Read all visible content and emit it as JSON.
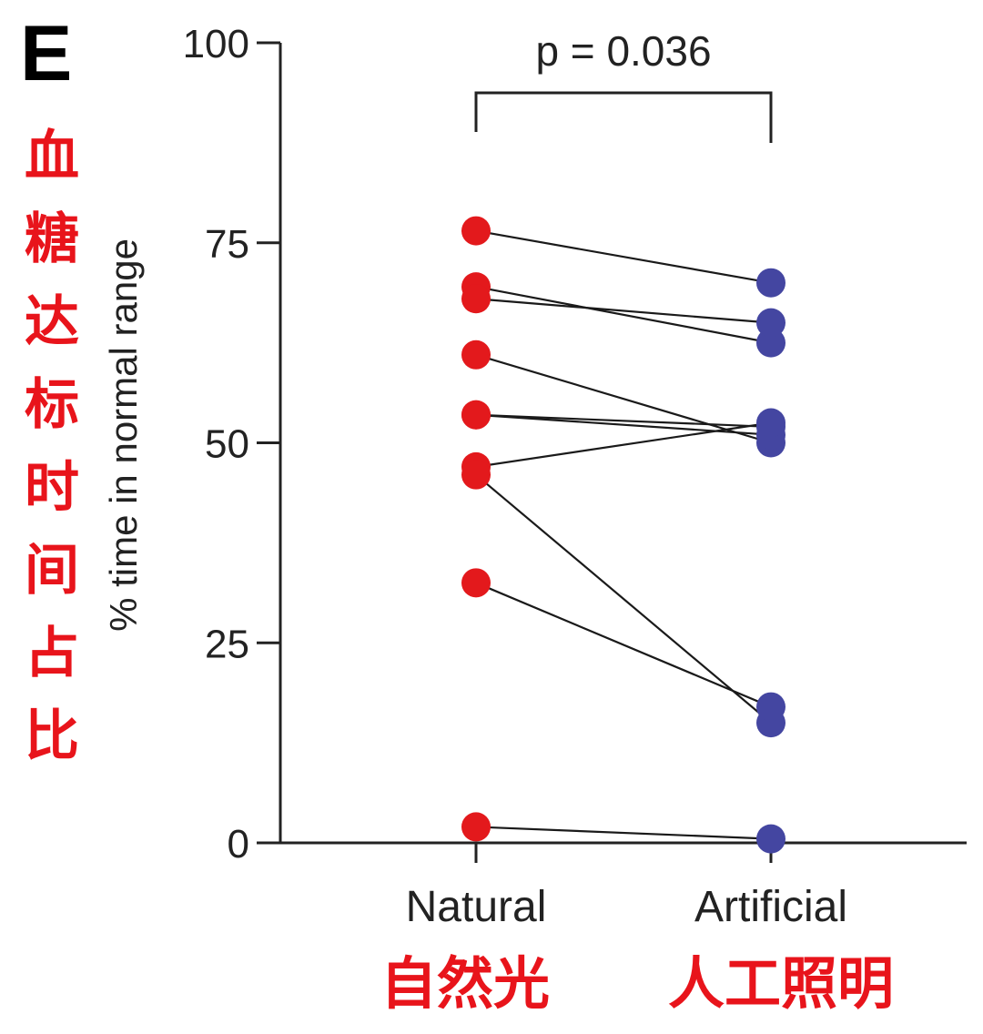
{
  "panel_label": "E",
  "chart_data": {
    "type": "scatter",
    "paired": true,
    "categories": [
      "Natural",
      "Artificial"
    ],
    "ylabel": "% time in normal range",
    "ylim": [
      0,
      100
    ],
    "yticks": [
      0,
      25,
      50,
      75,
      100
    ],
    "annotation": "p = 0.036",
    "colors": {
      "Natural": "#e3191c",
      "Artificial": "#4446a1"
    },
    "pairs": [
      {
        "natural": 76.5,
        "artificial": 70
      },
      {
        "natural": 69.5,
        "artificial": 62.5
      },
      {
        "natural": 68,
        "artificial": 65
      },
      {
        "natural": 61,
        "artificial": 50
      },
      {
        "natural": 53.5,
        "artificial": 52
      },
      {
        "natural": 53.5,
        "artificial": 51
      },
      {
        "natural": 47,
        "artificial": 52.5
      },
      {
        "natural": 46,
        "artificial": 15
      },
      {
        "natural": 32.5,
        "artificial": 17
      },
      {
        "natural": 2,
        "artificial": 0.5
      }
    ]
  },
  "overlay": {
    "y_label_cn": "血糖达标时间占比",
    "x_labels_cn": [
      "自然光",
      "人工照明"
    ],
    "color": "#e8141b"
  }
}
